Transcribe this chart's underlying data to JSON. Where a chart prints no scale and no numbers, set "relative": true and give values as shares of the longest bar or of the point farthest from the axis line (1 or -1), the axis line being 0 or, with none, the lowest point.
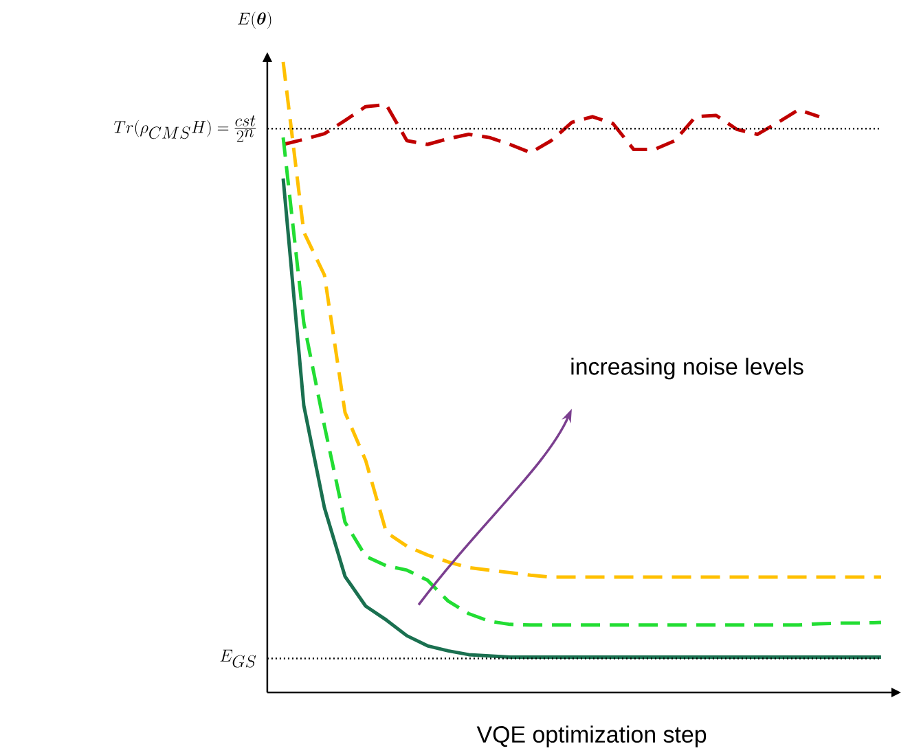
{
  "chart_data": {
    "type": "line",
    "relative": true,
    "marker": "none",
    "tick_labels": false,
    "xlabel": "VQE optimization step",
    "ylabel": "E(\\boldsymbol{\\theta})",
    "annotations": [
      "increasing noise levels"
    ],
    "categories": [
      null,
      null,
      null,
      null,
      null,
      null,
      null,
      null,
      null,
      null,
      null,
      null,
      null,
      null,
      null,
      null,
      null,
      null,
      null,
      null,
      null,
      null,
      null,
      null,
      null,
      null,
      null,
      null,
      null,
      null
    ],
    "ref_lines": [
      {
        "axis": "y",
        "value": 0.054,
        "label": "E_{GS}",
        "line_style": "dotted",
        "color": "#000000"
      },
      {
        "axis": "y",
        "value": 0.894,
        "label": "Tr(\\rho_{CMS}H)=\\frac{cst}{2^{n}}",
        "line_style": "dotted",
        "color": "#000000"
      }
    ],
    "series": [
      {
        "color": "#c00000",
        "line_style": "dashed",
        "values": [
          0.869,
          0.877,
          0.886,
          0.907,
          0.929,
          0.932,
          0.875,
          0.869,
          0.878,
          0.885,
          0.88,
          0.869,
          0.856,
          0.875,
          0.904,
          0.913,
          0.902,
          0.861,
          0.861,
          0.875,
          0.913,
          0.915,
          0.893,
          0.885,
          0.904,
          0.924,
          0.913,
          null,
          null,
          null
        ]
      },
      {
        "color": "#ffc000",
        "line_style": "dashed",
        "values": [
          1.0,
          0.73,
          0.662,
          0.444,
          0.368,
          0.254,
          0.232,
          0.218,
          0.207,
          0.198,
          0.194,
          0.19,
          0.186,
          0.183,
          0.183,
          0.183,
          0.183,
          0.183,
          0.183,
          0.183,
          0.183,
          0.183,
          0.183,
          0.183,
          0.183,
          0.183,
          0.183,
          0.183,
          0.183,
          0.183
        ]
      },
      {
        "color": "#22dd33",
        "line_style": "dashed",
        "values": [
          0.88,
          0.586,
          0.423,
          0.27,
          0.216,
          0.201,
          0.194,
          0.178,
          0.145,
          0.125,
          0.113,
          0.108,
          0.107,
          0.107,
          0.107,
          0.107,
          0.107,
          0.107,
          0.107,
          0.107,
          0.107,
          0.107,
          0.107,
          0.107,
          0.107,
          0.107,
          0.109,
          0.11,
          0.11,
          0.111
        ]
      },
      {
        "color": "#1a7050",
        "line_style": "solid",
        "values": [
          0.815,
          0.455,
          0.293,
          0.184,
          0.137,
          0.115,
          0.09,
          0.074,
          0.066,
          0.06,
          0.058,
          0.056,
          0.056,
          0.056,
          0.056,
          0.056,
          0.056,
          0.056,
          0.056,
          0.056,
          0.056,
          0.056,
          0.056,
          0.056,
          0.056,
          0.056,
          0.056,
          0.056,
          0.056,
          0.056
        ]
      }
    ]
  }
}
